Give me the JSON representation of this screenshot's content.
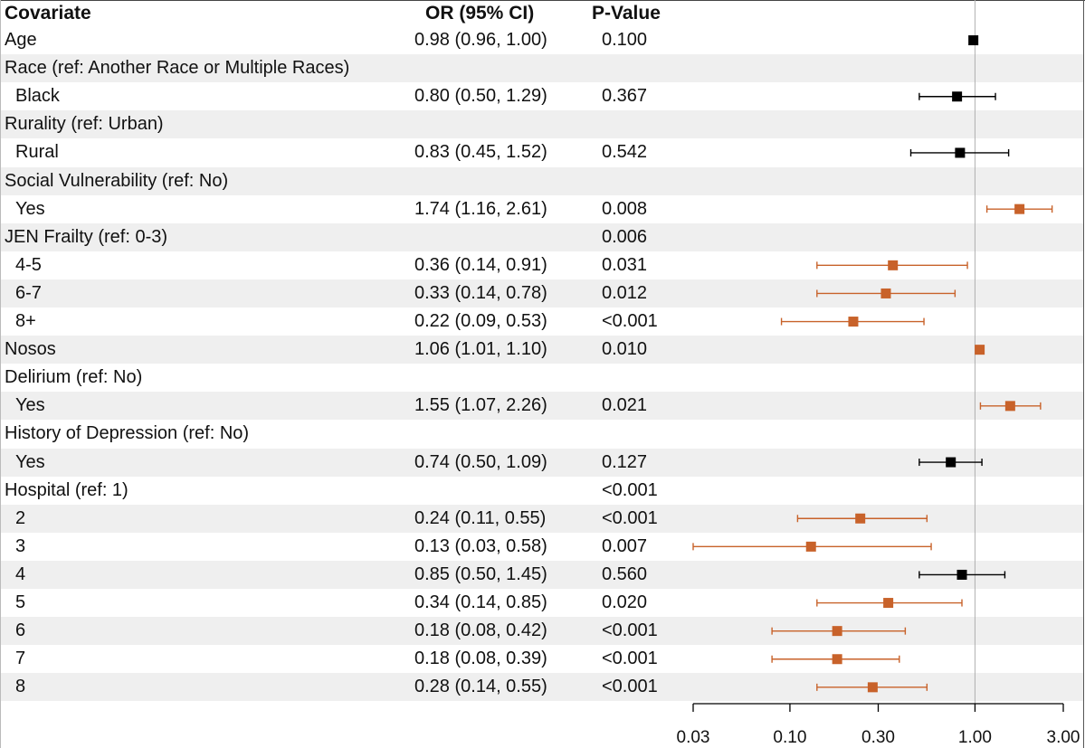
{
  "headers": {
    "covariate": "Covariate",
    "or": "OR (95% CI)",
    "pvalue": "P-Value"
  },
  "colors": {
    "significant": "#c8622a",
    "nonsignificant": "#000000",
    "reference_line": "#b0b0b0",
    "row_shade": "#efefef"
  },
  "chart_data": {
    "type": "forest",
    "scale": "log",
    "xlim": [
      0.03,
      3.0
    ],
    "xticks": [
      "0.03",
      "0.10",
      "0.30",
      "1.00",
      "3.00"
    ],
    "reference": 1.0,
    "rows": [
      {
        "label": "Age",
        "indent": false,
        "or_text": "0.98 (0.96, 1.00)",
        "p": "0.100",
        "est": 0.98,
        "lo": 0.96,
        "hi": 1.0,
        "significant": false
      },
      {
        "label": "Race (ref: Another Race or Multiple Races)",
        "indent": false,
        "or_text": "",
        "p": ""
      },
      {
        "label": "Black",
        "indent": true,
        "or_text": "0.80 (0.50, 1.29)",
        "p": "0.367",
        "est": 0.8,
        "lo": 0.5,
        "hi": 1.29,
        "significant": false
      },
      {
        "label": "Rurality (ref: Urban)",
        "indent": false,
        "or_text": "",
        "p": ""
      },
      {
        "label": "Rural",
        "indent": true,
        "or_text": "0.83 (0.45, 1.52)",
        "p": "0.542",
        "est": 0.83,
        "lo": 0.45,
        "hi": 1.52,
        "significant": false
      },
      {
        "label": "Social Vulnerability (ref: No)",
        "indent": false,
        "or_text": "",
        "p": ""
      },
      {
        "label": "Yes",
        "indent": true,
        "or_text": "1.74 (1.16, 2.61)",
        "p": "0.008",
        "est": 1.74,
        "lo": 1.16,
        "hi": 2.61,
        "significant": true
      },
      {
        "label": "JEN Frailty (ref: 0-3)",
        "indent": false,
        "or_text": "",
        "p": "0.006"
      },
      {
        "label": "4-5",
        "indent": true,
        "or_text": "0.36 (0.14, 0.91)",
        "p": "0.031",
        "est": 0.36,
        "lo": 0.14,
        "hi": 0.91,
        "significant": true
      },
      {
        "label": "6-7",
        "indent": true,
        "or_text": "0.33 (0.14, 0.78)",
        "p": "0.012",
        "est": 0.33,
        "lo": 0.14,
        "hi": 0.78,
        "significant": true
      },
      {
        "label": "8+",
        "indent": true,
        "or_text": "0.22 (0.09, 0.53)",
        "p": "<0.001",
        "est": 0.22,
        "lo": 0.09,
        "hi": 0.53,
        "significant": true
      },
      {
        "label": "Nosos",
        "indent": false,
        "or_text": "1.06 (1.01, 1.10)",
        "p": "0.010",
        "est": 1.06,
        "lo": 1.01,
        "hi": 1.1,
        "significant": true
      },
      {
        "label": "Delirium (ref: No)",
        "indent": false,
        "or_text": "",
        "p": ""
      },
      {
        "label": "Yes",
        "indent": true,
        "or_text": "1.55 (1.07, 2.26)",
        "p": "0.021",
        "est": 1.55,
        "lo": 1.07,
        "hi": 2.26,
        "significant": true
      },
      {
        "label": "History of Depression (ref: No)",
        "indent": false,
        "or_text": "",
        "p": ""
      },
      {
        "label": "Yes",
        "indent": true,
        "or_text": "0.74 (0.50, 1.09)",
        "p": "0.127",
        "est": 0.74,
        "lo": 0.5,
        "hi": 1.09,
        "significant": false
      },
      {
        "label": "Hospital (ref: 1)",
        "indent": false,
        "or_text": "",
        "p": "<0.001"
      },
      {
        "label": "2",
        "indent": true,
        "or_text": "0.24 (0.11, 0.55)",
        "p": "<0.001",
        "est": 0.24,
        "lo": 0.11,
        "hi": 0.55,
        "significant": true
      },
      {
        "label": "3",
        "indent": true,
        "or_text": "0.13 (0.03, 0.58)",
        "p": "0.007",
        "est": 0.13,
        "lo": 0.03,
        "hi": 0.58,
        "significant": true
      },
      {
        "label": "4",
        "indent": true,
        "or_text": "0.85 (0.50, 1.45)",
        "p": "0.560",
        "est": 0.85,
        "lo": 0.5,
        "hi": 1.45,
        "significant": false
      },
      {
        "label": "5",
        "indent": true,
        "or_text": "0.34 (0.14, 0.85)",
        "p": "0.020",
        "est": 0.34,
        "lo": 0.14,
        "hi": 0.85,
        "significant": true
      },
      {
        "label": "6",
        "indent": true,
        "or_text": "0.18 (0.08, 0.42)",
        "p": "<0.001",
        "est": 0.18,
        "lo": 0.08,
        "hi": 0.42,
        "significant": true
      },
      {
        "label": "7",
        "indent": true,
        "or_text": "0.18 (0.08, 0.39)",
        "p": "<0.001",
        "est": 0.18,
        "lo": 0.08,
        "hi": 0.39,
        "significant": true
      },
      {
        "label": "8",
        "indent": true,
        "or_text": "0.28 (0.14, 0.55)",
        "p": "<0.001",
        "est": 0.28,
        "lo": 0.14,
        "hi": 0.55,
        "significant": true
      }
    ]
  }
}
